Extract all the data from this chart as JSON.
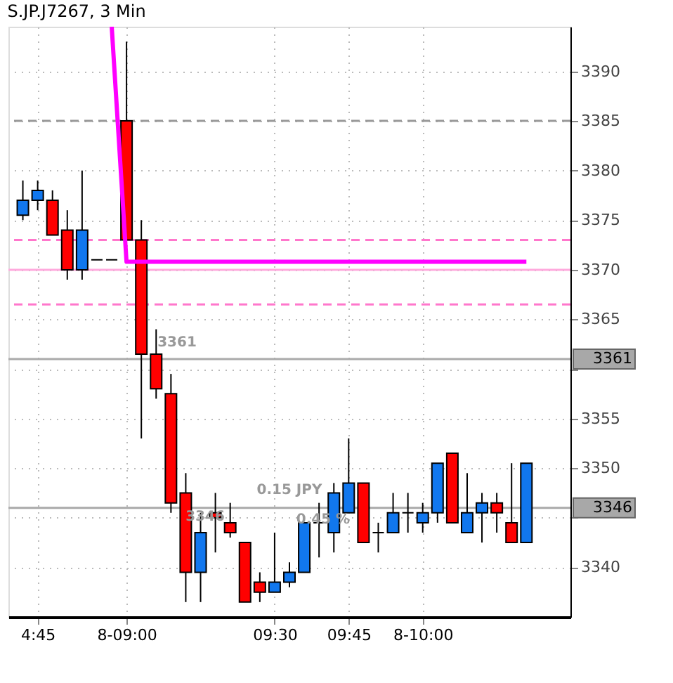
{
  "chart_data": {
    "type": "candlestick",
    "title": "S.JP.J7267, 3 Min",
    "categories": [
      null,
      "4:45",
      null,
      null,
      null,
      null,
      null,
      "8-09:00",
      null,
      null,
      null,
      null,
      null,
      null,
      null,
      null,
      null,
      "09:30",
      null,
      null,
      null,
      null,
      "09:45",
      null,
      null,
      null,
      null,
      "8-10:00",
      null,
      null,
      null,
      null,
      null,
      null,
      null
    ],
    "ohlc": [
      [
        3375.5,
        3379,
        3375,
        3377
      ],
      [
        3377,
        3379,
        3376,
        3378
      ],
      [
        3377,
        3378,
        3373.5,
        3373.5
      ],
      [
        3374,
        3376,
        3369,
        3370
      ],
      [
        3370,
        3380,
        3369,
        3374
      ],
      [
        3371,
        3371,
        3371,
        3371
      ],
      [
        3371,
        3371,
        3371,
        3371
      ],
      [
        3385,
        3393,
        3373,
        3373
      ],
      [
        3373,
        3375,
        3353,
        3361.5
      ],
      [
        3361.5,
        3364,
        3357,
        3358
      ],
      [
        3357.5,
        3359.5,
        3345.5,
        3346.5
      ],
      [
        3347.5,
        3349.5,
        3336.5,
        3339.5
      ],
      [
        3339.5,
        3345.5,
        3336.5,
        3343.5
      ],
      [
        3345.5,
        3347.5,
        3341.5,
        3345
      ],
      [
        3344.5,
        3346.5,
        3343,
        3343.5
      ],
      [
        3342.5,
        3342.5,
        3336.5,
        3336.5
      ],
      [
        3338.5,
        3339.5,
        3336.5,
        3337.5
      ],
      [
        3337.5,
        3343.5,
        3337.5,
        3338.5
      ],
      [
        3338.5,
        3340.5,
        3338,
        3339.5
      ],
      [
        3339.5,
        3344.5,
        3339.5,
        3344.5
      ],
      [
        3344.5,
        3346.5,
        3341,
        3344.5
      ],
      [
        3343.5,
        3348.5,
        3341.5,
        3347.5
      ],
      [
        3345.5,
        3353,
        3345.5,
        3348.5
      ],
      [
        3348.5,
        3348.5,
        3342.5,
        3342.5
      ],
      [
        3343.5,
        3344.5,
        3341.5,
        3343.5
      ],
      [
        3343.5,
        3347.5,
        3343.5,
        3345.5
      ],
      [
        3345.5,
        3347.5,
        3343.5,
        3345.5
      ],
      [
        3344.5,
        3346.5,
        3343.5,
        3345.5
      ],
      [
        3345.5,
        3350.5,
        3344.5,
        3350.5
      ],
      [
        3351.5,
        3351.5,
        3344.5,
        3344.5
      ],
      [
        3343.5,
        3349.5,
        3343.5,
        3345.5
      ],
      [
        3345.5,
        3347.5,
        3342.5,
        3346.5
      ],
      [
        3346.5,
        3347.5,
        3343.5,
        3345.5
      ],
      [
        3344.5,
        3350.5,
        3342.5,
        3342.5
      ],
      [
        3342.5,
        3350.5,
        3342.5,
        3350.5
      ]
    ],
    "colors": [
      "#1177ee",
      "#1177ee",
      "#ff0000",
      "#ff0000",
      "#1177ee",
      "#000000",
      "#000000",
      "#ff0000",
      "#ff0000",
      "#ff0000",
      "#ff0000",
      "#ff0000",
      "#1177ee",
      "#ff0000",
      "#ff0000",
      "#ff0000",
      "#ff0000",
      "#1177ee",
      "#1177ee",
      "#1177ee",
      "#000000",
      "#1177ee",
      "#1177ee",
      "#ff0000",
      "#000000",
      "#1177ee",
      "#000000",
      "#1177ee",
      "#1177ee",
      "#ff0000",
      "#1177ee",
      "#1177ee",
      "#ff0000",
      "#ff0000",
      "#1177ee"
    ],
    "series": [
      {
        "type": "line",
        "color": "#ff00ff",
        "values": [
          null,
          null,
          null,
          null,
          null,
          null,
          3394.5,
          3370.8,
          3370.8,
          3370.8,
          3370.8,
          3370.8,
          3370.8,
          3370.8,
          3370.8,
          3370.8,
          3370.8,
          3370.8,
          3370.8,
          3370.8,
          3370.8,
          3370.8,
          3370.8,
          3370.8,
          3370.8,
          3370.8,
          3370.8,
          3370.8,
          3370.8,
          3370.8,
          3370.8,
          3370.8,
          3370.8,
          3370.8,
          3370.8
        ]
      }
    ],
    "ref_lines": [
      {
        "axis": "y",
        "value": 3385,
        "color": "#999999",
        "line_style": "dashed"
      },
      {
        "axis": "y",
        "value": 3373,
        "color": "#ff77cc",
        "line_style": "dashed"
      },
      {
        "axis": "y",
        "value": 3370,
        "color": "#ffaadd",
        "line_style": "solid"
      },
      {
        "axis": "y",
        "value": 3366.5,
        "color": "#ff77cc",
        "line_style": "dashed"
      },
      {
        "axis": "y",
        "value": 3361,
        "label": "3361",
        "color": "#aaaaaa",
        "line_style": "solid"
      },
      {
        "axis": "y",
        "value": 3346,
        "label": "3346",
        "color": "#aaaaaa",
        "line_style": "solid"
      }
    ],
    "annotations": [
      "3361",
      "3346",
      "0.15 JPY",
      "0.45 %"
    ],
    "ylim": [
      3335,
      3394.5
    ],
    "yticks": [
      3340,
      {
        "value": 3345,
        "label": null
      },
      3350,
      3355,
      {
        "value": 3360,
        "label": null
      },
      3365,
      3370,
      3375,
      3380,
      3385,
      3390
    ],
    "grid": true
  }
}
